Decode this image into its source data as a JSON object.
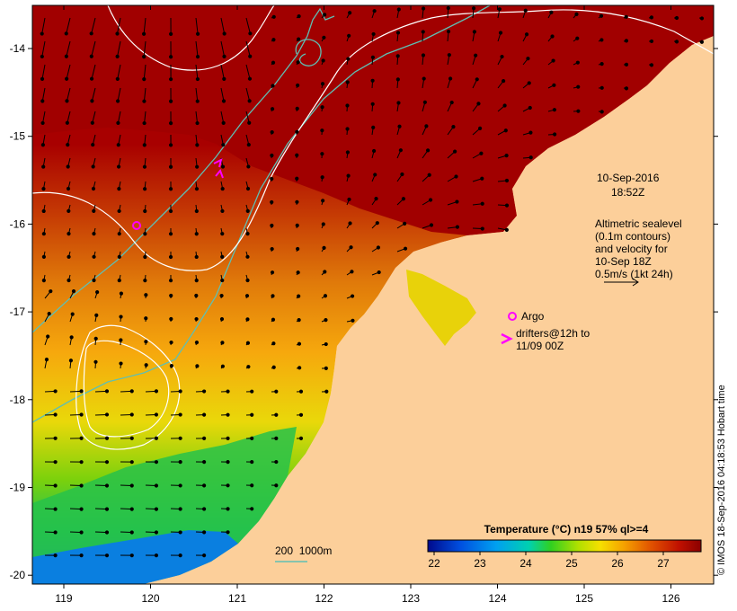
{
  "date": "10-Sep-2016",
  "time": "18:52Z",
  "altimetry": {
    "line1": "Altimetric sealevel",
    "line2": "(0.1m contours)",
    "line3": "and velocity for",
    "line4": "10-Sep 18Z",
    "line5": "0.5m/s (1kt 24h)"
  },
  "legend": {
    "argo": "Argo",
    "drifters_line1": "drifters@12h to",
    "drifters_line2": "11/09 00Z",
    "depth_contours": "200  1000m"
  },
  "colorbar": {
    "title": "Temperature (°C) n19 57% ql>=4",
    "ticks": [
      "22",
      "23",
      "24",
      "25",
      "26",
      "27"
    ]
  },
  "axes": {
    "x_ticks": [
      "119",
      "120",
      "121",
      "122",
      "123",
      "124",
      "125",
      "126"
    ],
    "y_ticks": [
      "-14",
      "-15",
      "-16",
      "-17",
      "-18",
      "-19",
      "-20"
    ]
  },
  "credit": "© IMOS 18-Sep-2016 04:18:53 Hobart time",
  "colors": {
    "land": "#fccf9a",
    "sst_warm": "#a10000",
    "sst_cool": "#0073d5",
    "argo_marker": "#ff00ff",
    "isobath": "#5fbfb3",
    "sealevel_contour": "#ffffff"
  }
}
